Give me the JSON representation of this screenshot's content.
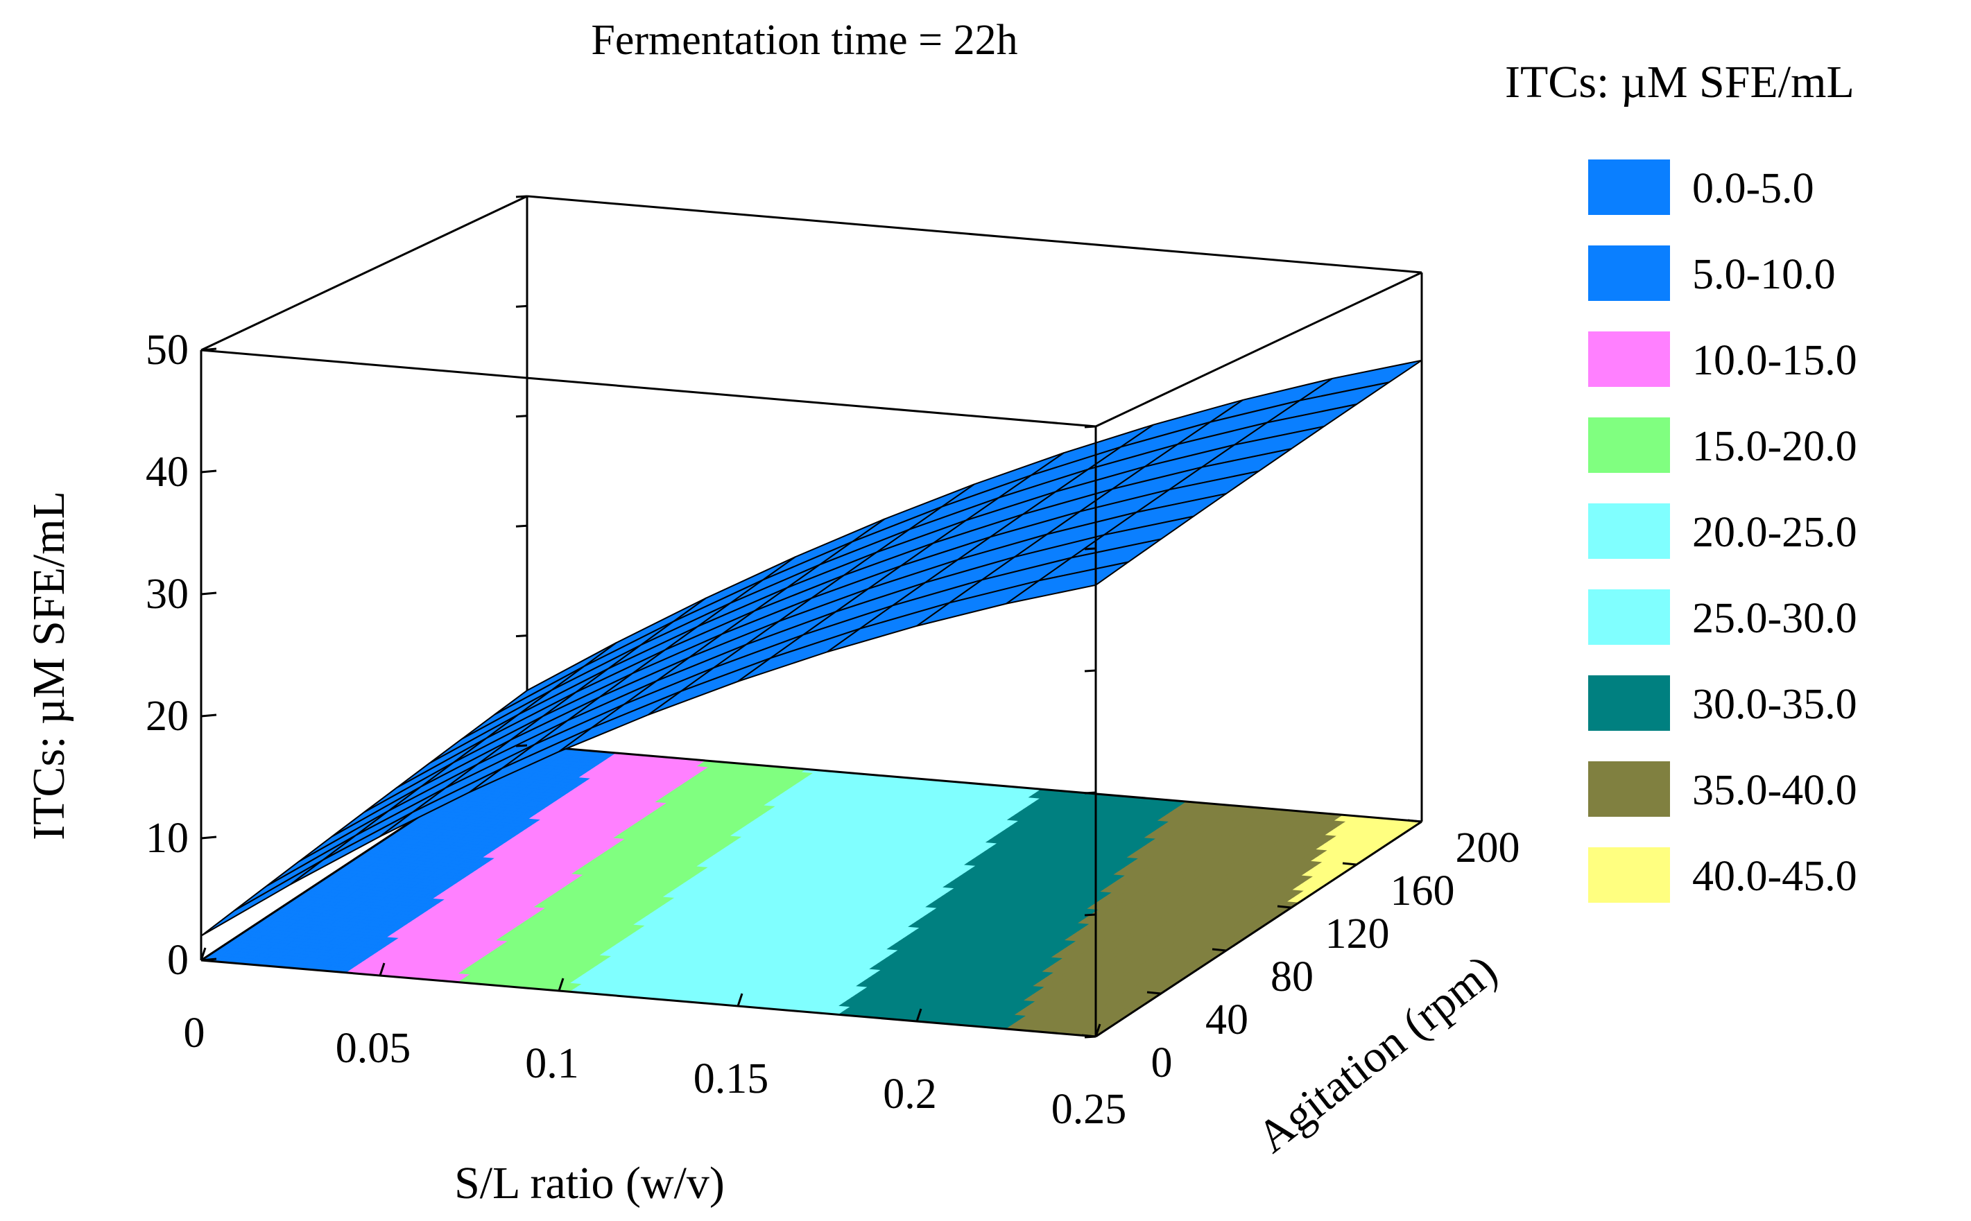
{
  "chart_data": {
    "type": "surface3d",
    "title": "Fermentation time = 22h",
    "xlabel": "S/L ratio (w/v)",
    "ylabel": "Agitation (rpm)",
    "zlabel": "ITCs: µM SFE/mL",
    "xlim": [
      0,
      0.25
    ],
    "ylim": [
      0,
      200
    ],
    "zlim": [
      0,
      50
    ],
    "x_ticks": [
      "0",
      "0.05",
      "0.1",
      "0.15",
      "0.2",
      "0.25"
    ],
    "y_ticks": [
      "0",
      "40",
      "80",
      "120",
      "160",
      "200"
    ],
    "z_ticks": [
      "0",
      "10",
      "20",
      "30",
      "40",
      "50"
    ],
    "surface": {
      "x": [
        0,
        0.025,
        0.05,
        0.075,
        0.1,
        0.125,
        0.15,
        0.175,
        0.2,
        0.225,
        0.25
      ],
      "y": [
        0,
        20,
        40,
        60,
        80,
        100,
        120,
        140,
        160,
        180,
        200
      ],
      "z_corners": {
        "x0_y0": 2,
        "x025_y0": 37,
        "x0_y200": 5,
        "x025_y200": 42
      },
      "color": "#0a7fff",
      "description_values": "ITCs increase with S/L ratio; slight increase with agitation"
    },
    "contour_projection": true,
    "legend": {
      "title": "ITCs: µM SFE/mL",
      "placement": "right",
      "entries": [
        {
          "label": "0.0-5.0",
          "color": "#0a7fff"
        },
        {
          "label": "5.0-10.0",
          "color": "#0a7fff"
        },
        {
          "label": "10.0-15.0",
          "color": "#ff80ff"
        },
        {
          "label": "15.0-20.0",
          "color": "#80ff80"
        },
        {
          "label": "20.0-25.0",
          "color": "#80ffff"
        },
        {
          "label": "25.0-30.0",
          "color": "#80ffff"
        },
        {
          "label": "30.0-35.0",
          "color": "#008080"
        },
        {
          "label": "35.0-40.0",
          "color": "#808040"
        },
        {
          "label": "40.0-45.0",
          "color": "#ffff80"
        }
      ]
    }
  }
}
